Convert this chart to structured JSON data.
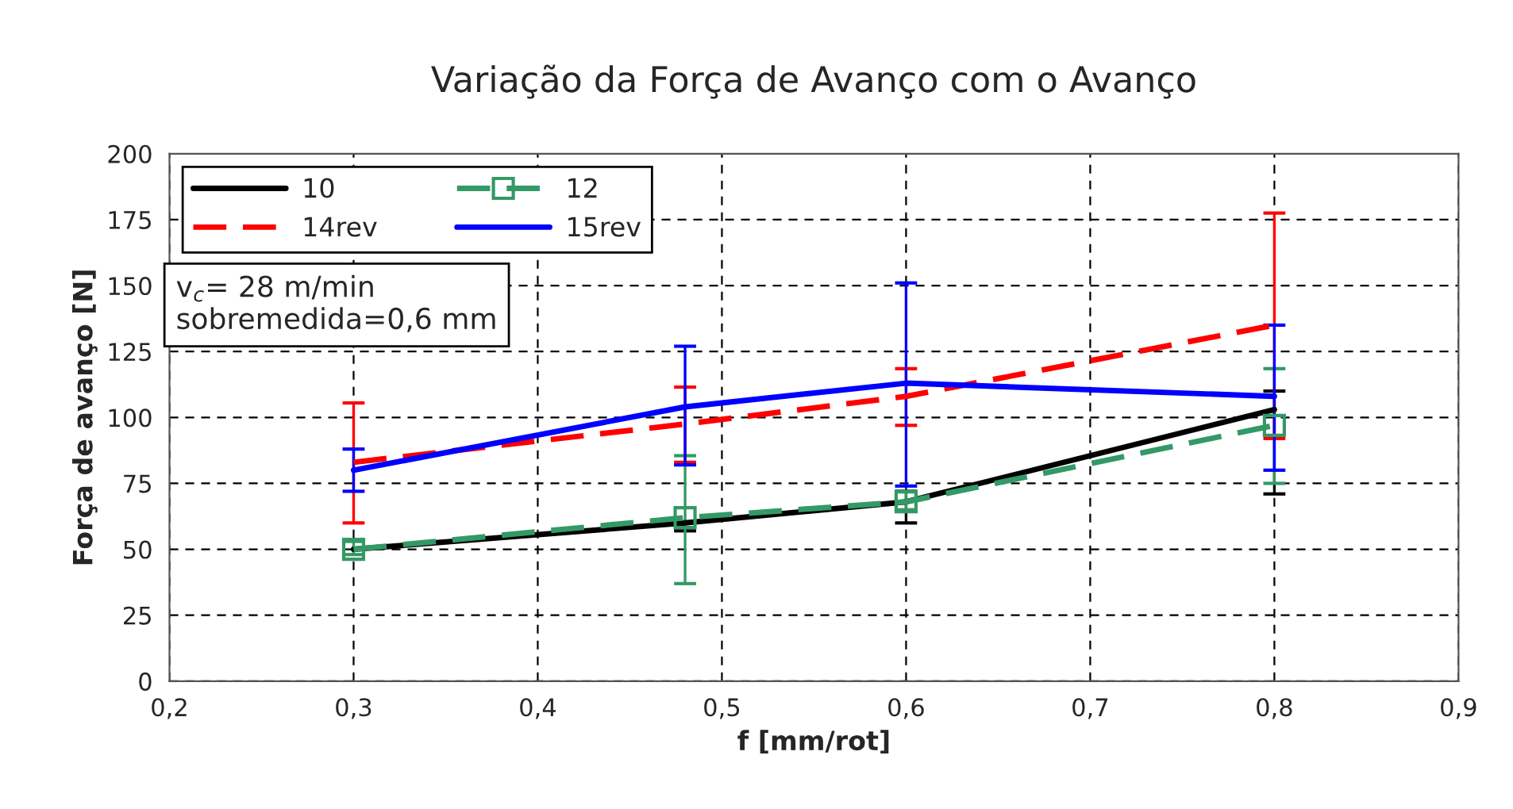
{
  "chart_data": {
    "type": "line",
    "title": "Variação da Força de Avanço com o Avanço",
    "xlabel": "f [mm/rot]",
    "ylabel": "Força de avanço [N]",
    "x": [
      0.3,
      0.48,
      0.6,
      0.8
    ],
    "series": [
      {
        "name": "10",
        "color": "#000000",
        "values": [
          50,
          60,
          68,
          103
        ],
        "errors": [
          null,
          [
            57,
            60
          ],
          [
            60,
            72
          ],
          [
            71,
            110
          ]
        ],
        "marker": "none",
        "line_style": "solid"
      },
      {
        "name": "12",
        "color": "#339966",
        "values": [
          50,
          62,
          68,
          97
        ],
        "errors": [
          [
            48,
            53
          ],
          [
            37,
            85.5
          ],
          [
            65,
            72
          ],
          [
            75,
            118.5
          ]
        ],
        "marker": "square",
        "line_style": "dashed"
      },
      {
        "name": "14rev",
        "color": "#ff0000",
        "values": [
          83,
          97.5,
          108,
          135
        ],
        "errors": [
          [
            60,
            105.5
          ],
          [
            83,
            111.5
          ],
          [
            97,
            118.5
          ],
          [
            92,
            177.5
          ]
        ],
        "marker": "none",
        "line_style": "dashed"
      },
      {
        "name": "15rev",
        "color": "#0000ff",
        "values": [
          80,
          104,
          113,
          108
        ],
        "errors": [
          [
            72,
            88
          ],
          [
            82,
            127
          ],
          [
            74,
            151
          ],
          [
            80,
            135
          ]
        ],
        "marker": "none",
        "line_style": "solid"
      }
    ],
    "xlim": [
      0.2,
      0.9
    ],
    "xticks": [
      {
        "value": 0.2,
        "label": "0,2"
      },
      {
        "value": 0.3,
        "label": "0,3"
      },
      {
        "value": 0.4,
        "label": "0,4"
      },
      {
        "value": 0.5,
        "label": "0,5"
      },
      {
        "value": 0.6,
        "label": "0,6"
      },
      {
        "value": 0.7,
        "label": "0,7"
      },
      {
        "value": 0.8,
        "label": "0,8"
      },
      {
        "value": 0.9,
        "label": "0,9"
      }
    ],
    "ylim": [
      0,
      200
    ],
    "yticks": [
      0,
      25,
      50,
      75,
      100,
      125,
      150,
      175,
      200
    ],
    "annotations": [
      "v$_{c}$= 28 m/min\nsobremedida=0,6 mm"
    ],
    "grid": true,
    "legend": "top left"
  }
}
